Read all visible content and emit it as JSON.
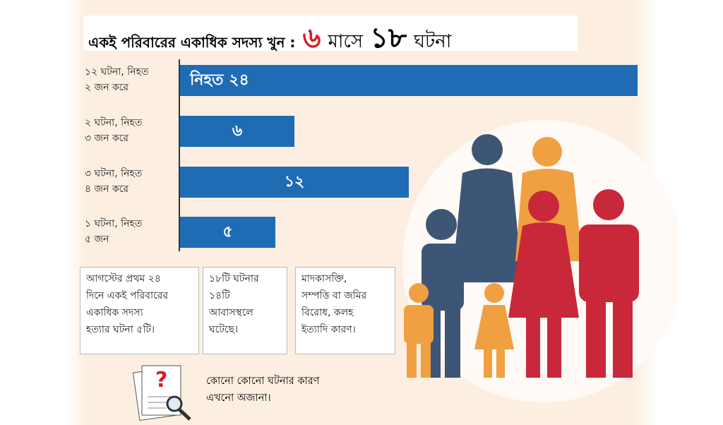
{
  "header": {
    "lead": "একই পরিবারের একাধিক সদস্য খুন :",
    "num1": "৬",
    "word1": "মাসে",
    "num2": "১৮",
    "word2": "ঘটনা"
  },
  "chart_data": {
    "type": "bar",
    "orientation": "horizontal",
    "categories": [
      "১২ ঘটনা, নিহত\n২ জন করে",
      "২ ঘটনা, নিহত\n৩ জন করে",
      "৩ ঘটনা, নিহত\n৪ জন করে",
      "১ ঘটনা, নিহত\n৫ জন"
    ],
    "values": [
      24,
      6,
      12,
      5
    ],
    "value_labels": [
      "নিহত ২৪",
      "৬",
      "১২",
      "৫"
    ],
    "color": "#1f6cb4",
    "xlim": [
      0,
      24
    ]
  },
  "notes": [
    "আগস্টের প্রথম ২৪\nদিনে একই পরিবারের\nএকাধিক সদস্য\nহত্যার ঘটনা ৫টি।",
    "১৮টি ঘটনার\n১৪টি\nআবাসস্থলে\nঘটেছে।",
    "মাদকাসক্তি,\nসম্পত্তি বা জমির\nবিরোধ, কলহ\nইত্যাদি কারণ।"
  ],
  "footnote": "কোনো কোনো ঘটনার কারণ\nএখনো অজানা।"
}
